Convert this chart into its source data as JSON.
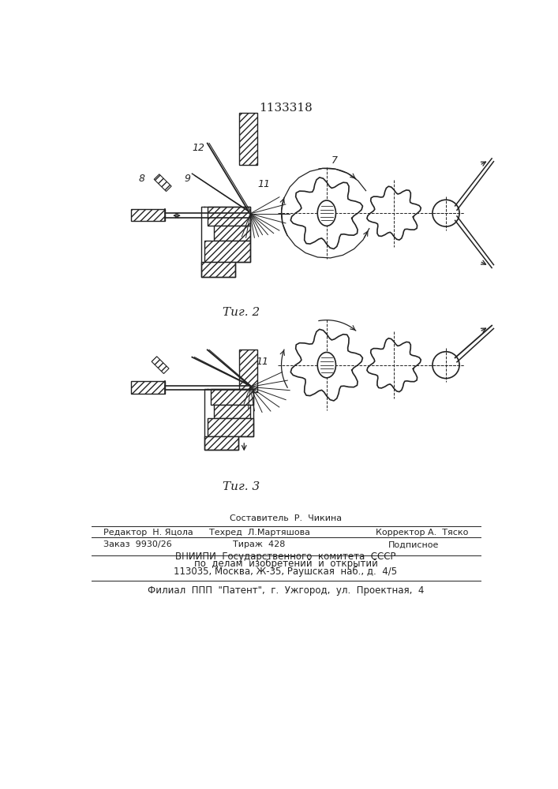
{
  "patent_number": "1133318",
  "fig2_label": "Τиг. 2",
  "fig3_label": "Τиг. 3",
  "footer": {
    "sostavitel": "Составитель  Р.  Чикина",
    "redaktor": "Редактор  Н. Яцола",
    "tehred": "Техред  Л.Мартяшова",
    "korrektor": "Корректор А.  Тяско",
    "zakaz": "Заказ  9930/26",
    "tirazh": "Тираж  428",
    "podpisnoe": "Подписное",
    "vniip1": "ВНИИПИ  Государственного  комитета  СССР",
    "vniip2": "по  делам  изобретений  и  открытий",
    "address": "113035, Москва, Ж-35, Раушская  наб., д.  4/5",
    "filial": "Филиал  ППП  \"Патент\",  г.  Ужгород,  ул.  Проектная,  4"
  },
  "bg_color": "#ffffff",
  "line_color": "#222222"
}
